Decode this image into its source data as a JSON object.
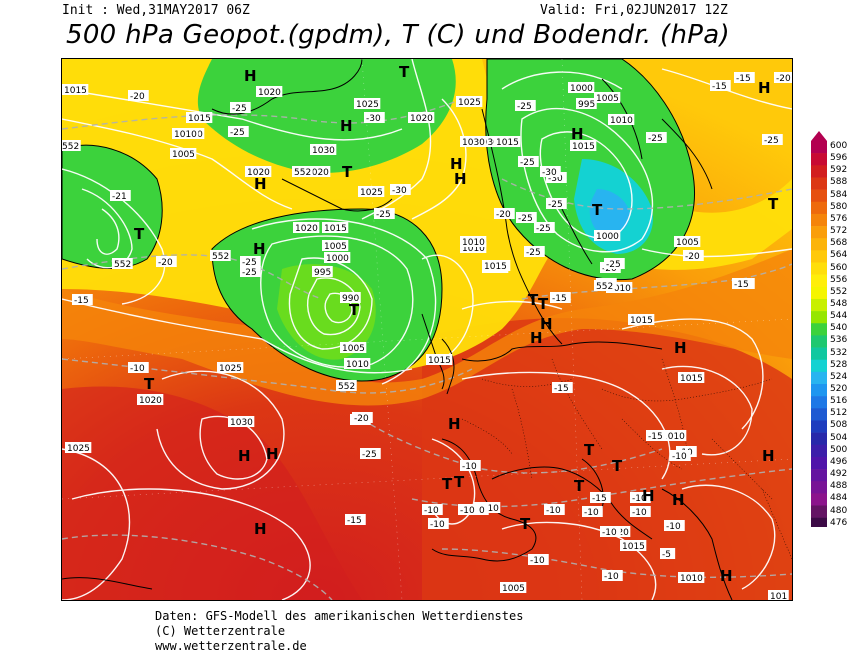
{
  "header": {
    "init": "Init : Wed,31MAY2017 06Z",
    "valid": "Valid: Fri,02JUN2017 12Z",
    "title": "500 hPa Geopot.(gpdm), T (C) und Bodendr. (hPa)"
  },
  "legend": {
    "labels": [
      "600",
      "596",
      "592",
      "588",
      "584",
      "580",
      "576",
      "572",
      "568",
      "564",
      "560",
      "556",
      "552",
      "548",
      "544",
      "540",
      "536",
      "532",
      "528",
      "524",
      "520",
      "516",
      "512",
      "508",
      "504",
      "500",
      "496",
      "492",
      "488",
      "484",
      "480",
      "476"
    ],
    "colors": [
      "#b30050",
      "#c80a32",
      "#d21e1e",
      "#dc3714",
      "#e6500f",
      "#ee6a0c",
      "#f5840a",
      "#fa9e0a",
      "#fcb40a",
      "#ffc90a",
      "#ffde0a",
      "#ffee0a",
      "#f5f500",
      "#c8f000",
      "#96e600",
      "#3cd23c",
      "#1ec870",
      "#10c8a0",
      "#14d2d2",
      "#28b4f0",
      "#1e96f0",
      "#1e78e6",
      "#1e5ad2",
      "#1e3cbe",
      "#2828aa",
      "#3c1eaa",
      "#5014aa",
      "#6414a0",
      "#781496",
      "#8c148c",
      "#641464",
      "#3c0a46"
    ]
  },
  "pressure_labels": [
    "1015",
    "1020",
    "1010",
    "1005",
    "1015",
    "1010",
    "1025",
    "1020",
    "1030",
    "1025",
    "1030",
    "1020",
    "1020",
    "1015",
    "1005",
    "1000",
    "995",
    "990",
    "1005",
    "1010",
    "1025",
    "1020",
    "1030",
    "1015",
    "1010",
    "1005",
    "1000",
    "995",
    "1000",
    "1005",
    "1015",
    "1010",
    "1015",
    "1015",
    "1010",
    "1015",
    "1025",
    "1020",
    "1030",
    "1025",
    "1015",
    "1010",
    "1015",
    "1015",
    "1010",
    "1010",
    "1005",
    "1015",
    "1020",
    "1010",
    "101"
  ],
  "temperature_labels": [
    "-20",
    "-25",
    "-25",
    "-30",
    "-25",
    "-25",
    "-25",
    "-30",
    "-15",
    "-15",
    "-20",
    "-25",
    "-25",
    "-30",
    "-25",
    "-25",
    "-25",
    "-25",
    "-15",
    "-20",
    "-20",
    "-20",
    "-15",
    "-20",
    "-25",
    "-25",
    "-15",
    "-15",
    "-10",
    "-15",
    "-15",
    "-10",
    "-15",
    "-10",
    "-10",
    "-10",
    "-15",
    "-10",
    "-10",
    "-10",
    "-10",
    "-10",
    "-10",
    "-10",
    "-15",
    "-10",
    "-10",
    "-10",
    "-10",
    "-5",
    "-20",
    "-21",
    "-25",
    "-25",
    "-30",
    "-25"
  ],
  "pressure_centers": [
    "H",
    "H",
    "T",
    "H",
    "H",
    "H",
    "T",
    "H",
    "T",
    "T",
    "T",
    "H",
    "T",
    "T",
    "H",
    "H",
    "H",
    "T",
    "H",
    "H",
    "T",
    "H",
    "T",
    "H",
    "H",
    "T",
    "H",
    "H",
    "T",
    "T",
    "T",
    "T",
    "H",
    "H"
  ],
  "height_labels": [
    "552",
    "552",
    "552",
    "552",
    "552",
    "552"
  ],
  "footer": {
    "line1": "Daten: GFS-Modell des amerikanischen Wetterdienstes",
    "line2": "(C) Wetterzentrale",
    "line3": "www.wetterzentrale.de"
  }
}
